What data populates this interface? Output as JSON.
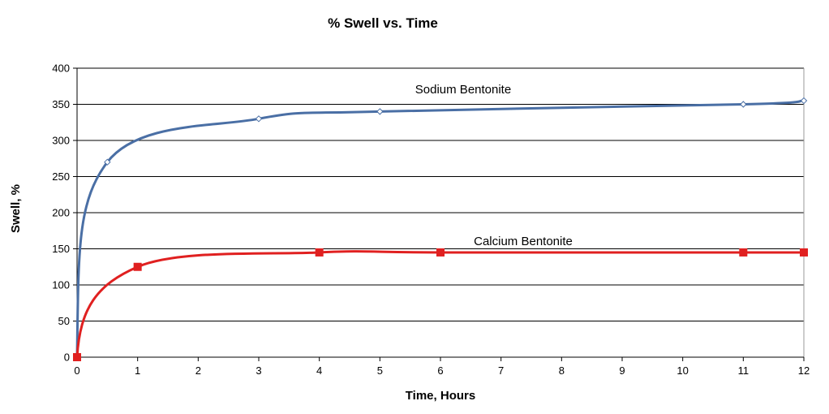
{
  "chart_data": {
    "type": "line",
    "title": "% Swell vs. Time",
    "xlabel": "Time, Hours",
    "ylabel": "Swell, %",
    "xlim": [
      0,
      12
    ],
    "ylim": [
      0,
      400
    ],
    "xticks": [
      0,
      1,
      2,
      3,
      4,
      5,
      6,
      7,
      8,
      9,
      10,
      11,
      12
    ],
    "yticks": [
      0,
      50,
      100,
      150,
      200,
      250,
      300,
      350,
      400
    ],
    "grid": "horizontal",
    "legend": "none",
    "series": [
      {
        "name": "Sodium Bentonite",
        "color": "#4a6fa5",
        "marker": "diamond-open",
        "x": [
          0,
          0.5,
          3,
          5,
          11,
          12
        ],
        "y": [
          0,
          270,
          330,
          340,
          350,
          355
        ]
      },
      {
        "name": "Calcium Bentonite",
        "color": "#e02020",
        "marker": "square-filled",
        "x": [
          0,
          1,
          4,
          6,
          11,
          12
        ],
        "y": [
          0,
          125,
          145,
          145,
          145,
          145
        ]
      }
    ]
  }
}
